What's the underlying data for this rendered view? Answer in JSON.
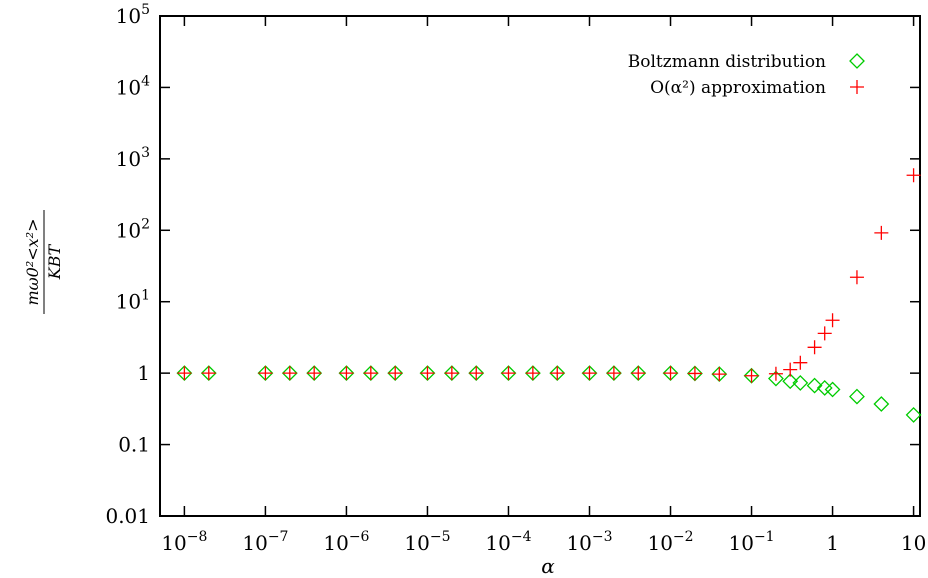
{
  "chart_data": {
    "type": "scatter",
    "x_scale": "log",
    "y_scale": "log",
    "xlim": [
      5e-09,
      12
    ],
    "ylim": [
      0.01,
      100000
    ],
    "xlabel": "α",
    "ylabel": {
      "numerator": "mω0²<x²>",
      "denominator": "KBT"
    },
    "x_ticks": [
      {
        "base": "10",
        "exp": "−8"
      },
      {
        "base": "10",
        "exp": "−7"
      },
      {
        "base": "10",
        "exp": "−6"
      },
      {
        "base": "10",
        "exp": "−5"
      },
      {
        "base": "10",
        "exp": "−4"
      },
      {
        "base": "10",
        "exp": "−3"
      },
      {
        "base": "10",
        "exp": "−2"
      },
      {
        "base": "10",
        "exp": "−1"
      },
      {
        "base": "1",
        "exp": ""
      },
      {
        "base": "10",
        "exp": ""
      }
    ],
    "x_tick_values": [
      1e-08,
      1e-07,
      1e-06,
      1e-05,
      0.0001,
      0.001,
      0.01,
      0.1,
      1,
      10
    ],
    "y_ticks": [
      {
        "base": "0.01",
        "exp": ""
      },
      {
        "base": "0.1",
        "exp": ""
      },
      {
        "base": "1",
        "exp": ""
      },
      {
        "base": "10",
        "exp": "1"
      },
      {
        "base": "10",
        "exp": "2"
      },
      {
        "base": "10",
        "exp": "3"
      },
      {
        "base": "10",
        "exp": "4"
      },
      {
        "base": "10",
        "exp": "5"
      }
    ],
    "y_tick_values": [
      0.01,
      0.1,
      1,
      10,
      100,
      1000,
      10000,
      100000
    ],
    "grid": false,
    "legend_position": "top-right",
    "series": [
      {
        "name": "Boltzmann distribution",
        "marker": "diamond",
        "color": "#00cc00",
        "points": [
          {
            "x": 1e-08,
            "y": 1.0
          },
          {
            "x": 2e-08,
            "y": 1.0
          },
          {
            "x": 1e-07,
            "y": 1.0
          },
          {
            "x": 2e-07,
            "y": 1.0
          },
          {
            "x": 4e-07,
            "y": 1.0
          },
          {
            "x": 1e-06,
            "y": 1.0
          },
          {
            "x": 2e-06,
            "y": 1.0
          },
          {
            "x": 4e-06,
            "y": 1.0
          },
          {
            "x": 1e-05,
            "y": 1.0
          },
          {
            "x": 2e-05,
            "y": 1.0
          },
          {
            "x": 4e-05,
            "y": 1.0
          },
          {
            "x": 0.0001,
            "y": 1.0
          },
          {
            "x": 0.0002,
            "y": 1.0
          },
          {
            "x": 0.0004,
            "y": 1.0
          },
          {
            "x": 0.001,
            "y": 1.0
          },
          {
            "x": 0.002,
            "y": 1.0
          },
          {
            "x": 0.004,
            "y": 1.0
          },
          {
            "x": 0.01,
            "y": 1.0
          },
          {
            "x": 0.02,
            "y": 0.99
          },
          {
            "x": 0.04,
            "y": 0.97
          },
          {
            "x": 0.1,
            "y": 0.92
          },
          {
            "x": 0.2,
            "y": 0.84
          },
          {
            "x": 0.3,
            "y": 0.77
          },
          {
            "x": 0.4,
            "y": 0.73
          },
          {
            "x": 0.6,
            "y": 0.67
          },
          {
            "x": 0.8,
            "y": 0.62
          },
          {
            "x": 1.0,
            "y": 0.59
          },
          {
            "x": 2.0,
            "y": 0.47
          },
          {
            "x": 4.0,
            "y": 0.37
          },
          {
            "x": 10.0,
            "y": 0.26
          }
        ]
      },
      {
        "name": "O(α²) approximation",
        "marker": "plus",
        "color": "#ff0000",
        "points": [
          {
            "x": 1e-08,
            "y": 1.0
          },
          {
            "x": 2e-08,
            "y": 1.0
          },
          {
            "x": 1e-07,
            "y": 1.0
          },
          {
            "x": 2e-07,
            "y": 1.0
          },
          {
            "x": 4e-07,
            "y": 1.0
          },
          {
            "x": 1e-06,
            "y": 1.0
          },
          {
            "x": 2e-06,
            "y": 1.0
          },
          {
            "x": 4e-06,
            "y": 1.0
          },
          {
            "x": 1e-05,
            "y": 1.0
          },
          {
            "x": 2e-05,
            "y": 1.0
          },
          {
            "x": 4e-05,
            "y": 1.0
          },
          {
            "x": 0.0001,
            "y": 1.0
          },
          {
            "x": 0.0002,
            "y": 1.0
          },
          {
            "x": 0.0004,
            "y": 1.0
          },
          {
            "x": 0.001,
            "y": 1.0
          },
          {
            "x": 0.002,
            "y": 1.0
          },
          {
            "x": 0.004,
            "y": 1.0
          },
          {
            "x": 0.01,
            "y": 1.0
          },
          {
            "x": 0.02,
            "y": 0.99
          },
          {
            "x": 0.04,
            "y": 0.97
          },
          {
            "x": 0.1,
            "y": 0.92
          },
          {
            "x": 0.2,
            "y": 0.98
          },
          {
            "x": 0.3,
            "y": 1.12
          },
          {
            "x": 0.4,
            "y": 1.4
          },
          {
            "x": 0.6,
            "y": 2.3
          },
          {
            "x": 0.8,
            "y": 3.6
          },
          {
            "x": 1.0,
            "y": 5.5
          },
          {
            "x": 2.0,
            "y": 22
          },
          {
            "x": 4.0,
            "y": 92
          },
          {
            "x": 10.0,
            "y": 590
          }
        ]
      }
    ]
  }
}
